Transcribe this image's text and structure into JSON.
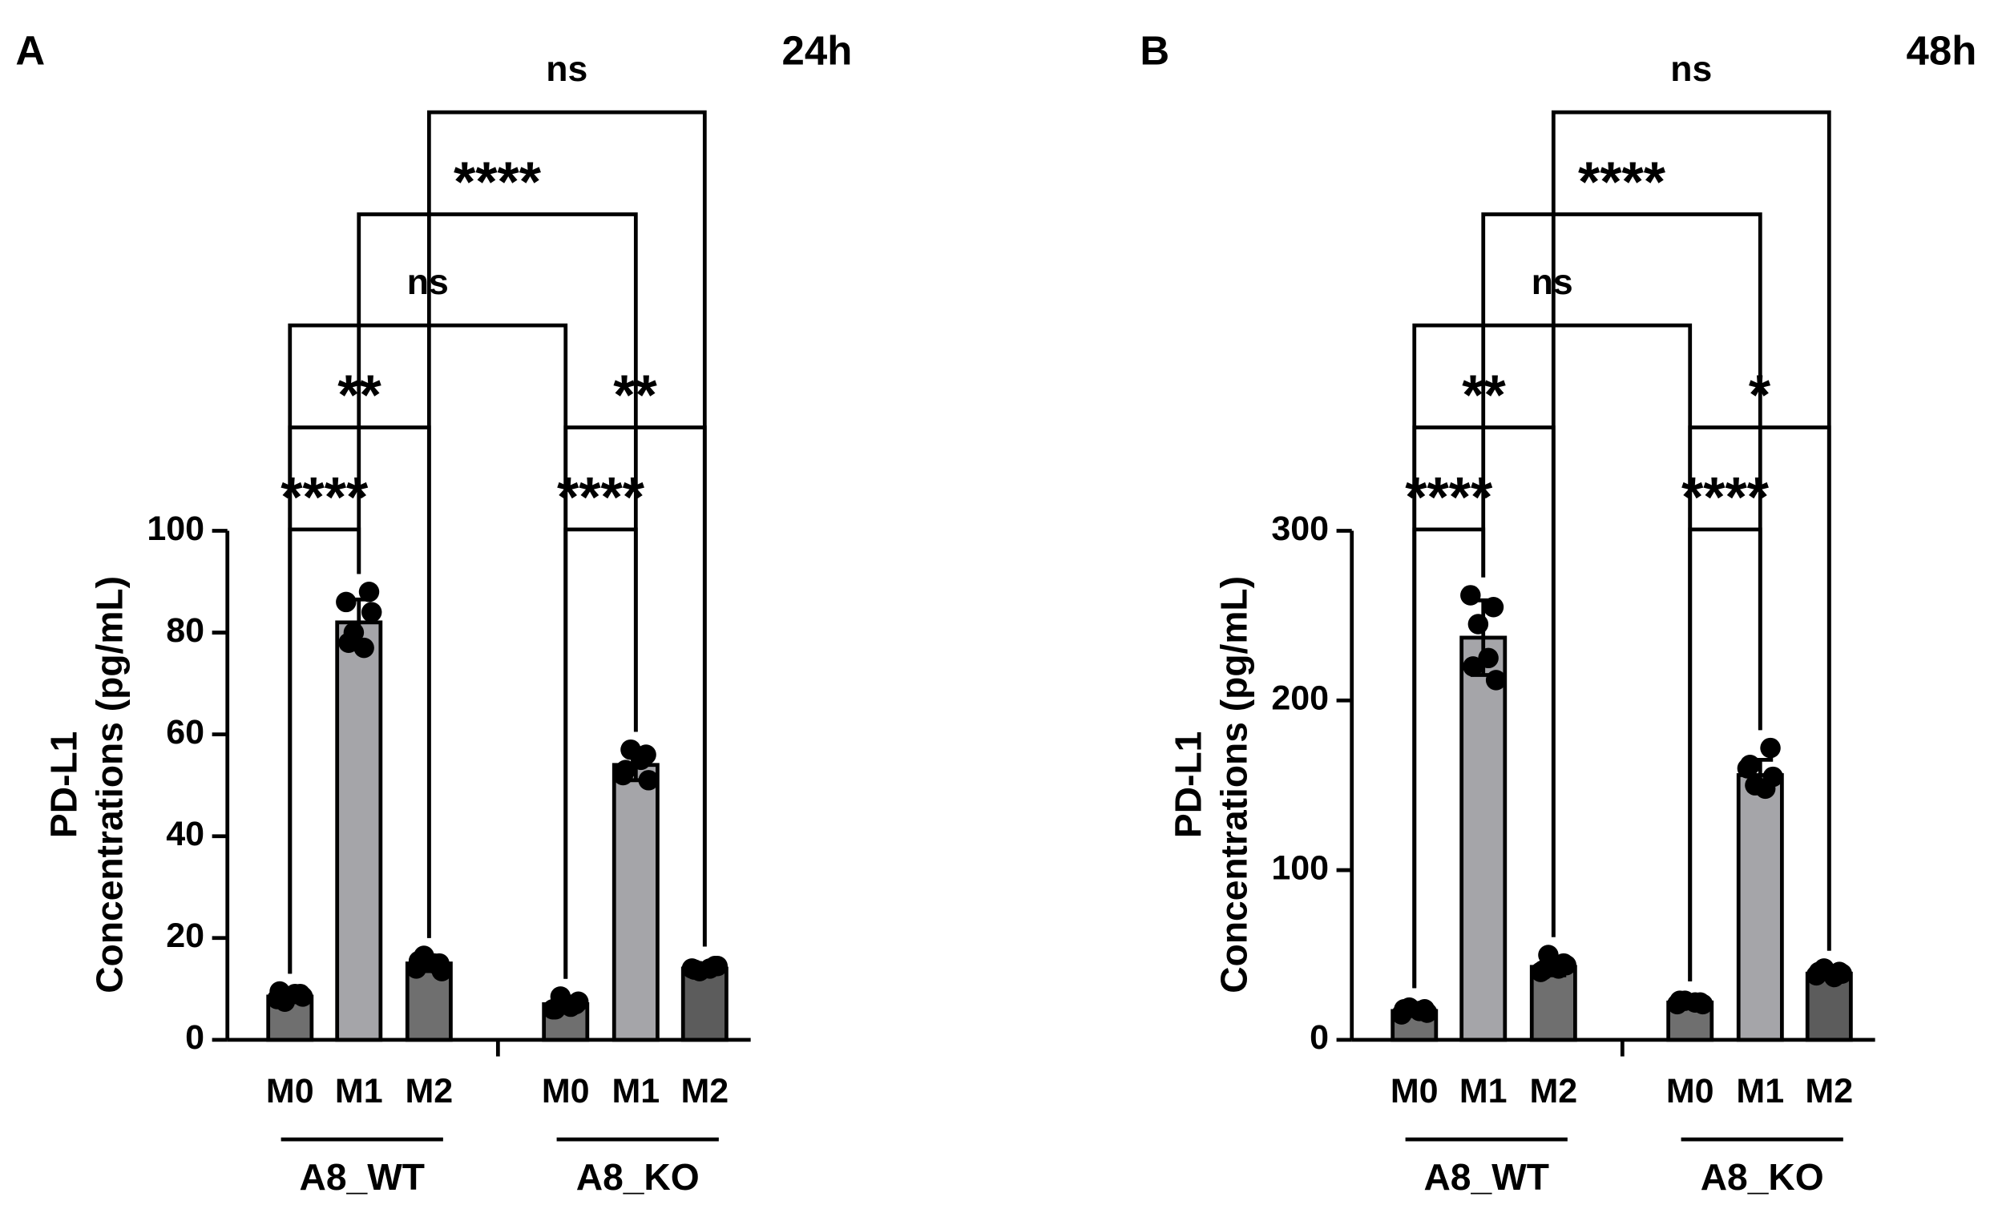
{
  "chart_data": [
    {
      "type": "bar",
      "panel": "A",
      "title": "24h",
      "ylabel": [
        "PD-L1",
        "Concentrations (pg/mL)"
      ],
      "categories": [
        "M0",
        "M1",
        "M2",
        "M0",
        "M1",
        "M2"
      ],
      "groups": [
        "A8_WT",
        "A8_KO"
      ],
      "values": [
        8.5,
        82,
        15,
        7,
        54,
        14
      ],
      "errors": [
        1,
        4.5,
        1.5,
        1.5,
        3,
        0.8
      ],
      "points": [
        [
          8,
          9,
          7.5,
          9,
          8.5,
          9.5
        ],
        [
          86,
          88,
          80,
          77,
          84,
          78
        ],
        [
          14,
          15,
          16.5,
          15,
          13.5,
          15.5
        ],
        [
          6,
          7,
          8.5,
          6.5,
          7.5,
          6
        ],
        [
          52,
          56,
          57,
          55,
          51,
          53
        ],
        [
          14,
          14.5,
          13.5,
          14,
          14.5,
          13.8
        ]
      ],
      "colors": [
        "#6f6f6f",
        "#a5a5a9",
        "#6f6f6f",
        "#6f6f6f",
        "#a5a5a9",
        "#5c5c5c"
      ],
      "ylim": [
        0,
        100
      ],
      "yticks": [
        0,
        20,
        40,
        60,
        80,
        100
      ],
      "annotations": [
        "****",
        "**",
        "ns",
        "****",
        "ns",
        "****",
        "**"
      ]
    },
    {
      "type": "bar",
      "panel": "B",
      "title": "48h",
      "ylabel": [
        "PD-L1",
        "Concentrations (pg/mL)"
      ],
      "categories": [
        "M0",
        "M1",
        "M2",
        "M0",
        "M1",
        "M2"
      ],
      "groups": [
        "A8_WT",
        "A8_KO"
      ],
      "values": [
        17,
        237,
        43,
        22,
        156,
        39
      ],
      "errors": [
        3,
        22,
        5,
        2,
        9,
        3
      ],
      "points": [
        [
          15,
          18,
          19,
          17,
          16,
          18
        ],
        [
          262,
          255,
          245,
          225,
          212,
          220
        ],
        [
          40,
          45,
          50,
          42,
          44,
          41
        ],
        [
          21,
          22,
          23,
          22,
          21,
          23
        ],
        [
          160,
          172,
          150,
          148,
          155,
          162
        ],
        [
          38,
          40,
          42,
          37,
          39,
          40
        ]
      ],
      "colors": [
        "#6f6f6f",
        "#a5a5a9",
        "#6f6f6f",
        "#6f6f6f",
        "#a5a5a9",
        "#5c5c5c"
      ],
      "ylim": [
        0,
        300
      ],
      "yticks": [
        0,
        100,
        200,
        300
      ],
      "annotations": [
        "****",
        "**",
        "ns",
        "****",
        "ns",
        "*",
        "****"
      ]
    }
  ]
}
